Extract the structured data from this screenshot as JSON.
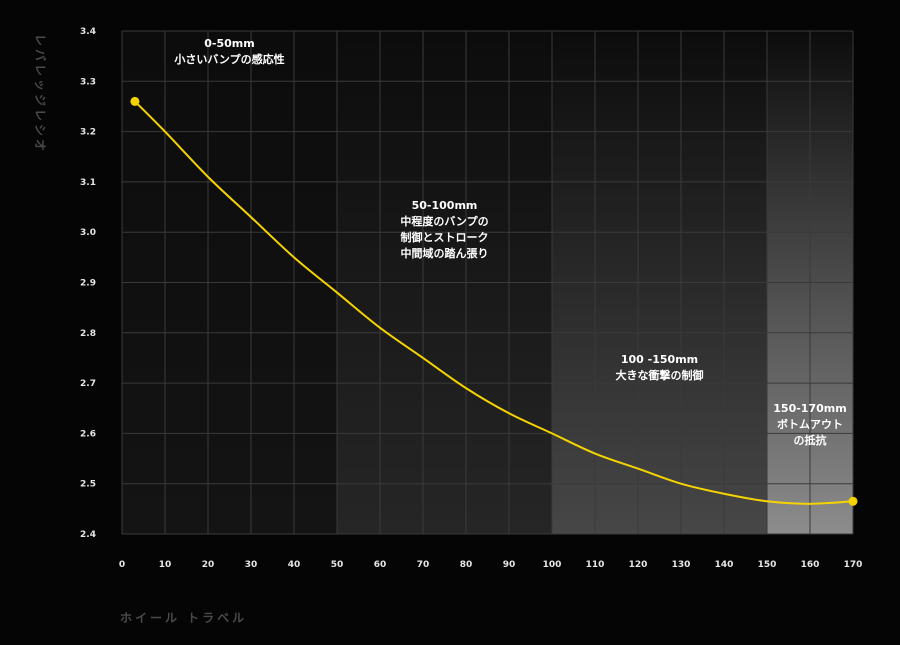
{
  "chart_data": {
    "type": "line",
    "xlabel": "ホイール トラベル",
    "ylabel": "レバレッジレシオ",
    "xlim": [
      0,
      170
    ],
    "ylim": [
      2.4,
      3.4
    ],
    "x_ticks": [
      0,
      10,
      20,
      30,
      40,
      50,
      60,
      70,
      80,
      90,
      100,
      110,
      120,
      130,
      140,
      150,
      160,
      170
    ],
    "y_ticks": [
      2.4,
      2.5,
      2.6,
      2.7,
      2.8,
      2.9,
      3.0,
      3.1,
      3.2,
      3.3,
      3.4
    ],
    "grid": true,
    "series": [
      {
        "color": "#f5d300",
        "x": [
          3,
          10,
          20,
          30,
          40,
          50,
          60,
          70,
          80,
          90,
          100,
          110,
          120,
          130,
          140,
          150,
          160,
          170
        ],
        "y": [
          3.26,
          3.2,
          3.11,
          3.03,
          2.95,
          2.88,
          2.81,
          2.75,
          2.69,
          2.64,
          2.6,
          2.56,
          2.53,
          2.5,
          2.48,
          2.465,
          2.46,
          2.465
        ]
      }
    ],
    "zones": [
      {
        "x_range": [
          0,
          50
        ],
        "shade": "#141414",
        "lines": [
          "0-50mm",
          "小さいバンプの感応性"
        ]
      },
      {
        "x_range": [
          50,
          100
        ],
        "shade": "#262626",
        "lines": [
          "50-100mm",
          "中程度のバンプの",
          "制御とストローク",
          "中間域の踏ん張り"
        ]
      },
      {
        "x_range": [
          100,
          150
        ],
        "shade": "#474747",
        "lines": [
          "100 -150mm",
          "大きな衝撃の制御"
        ]
      },
      {
        "x_range": [
          150,
          170
        ],
        "shade": "#8c8c8c",
        "lines": [
          "150-170mm",
          "ボトムアウト",
          "の抵抗"
        ]
      }
    ]
  }
}
